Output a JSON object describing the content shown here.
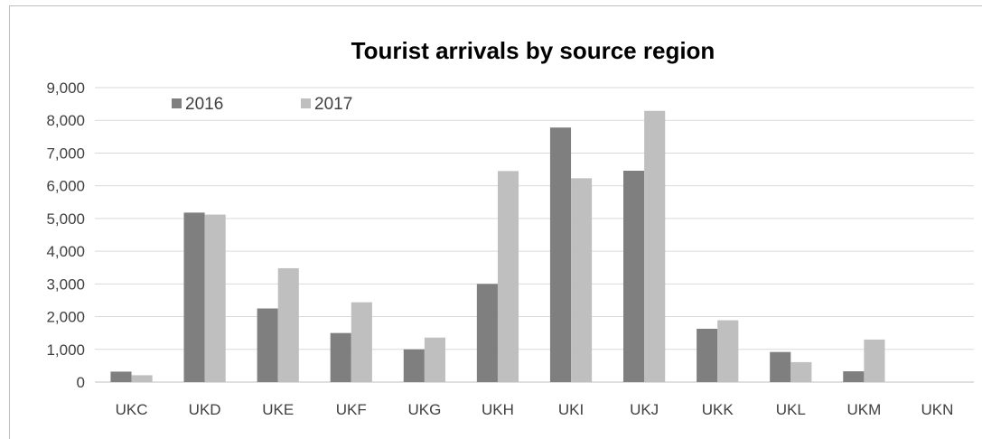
{
  "chart_data": {
    "type": "bar",
    "title": "Tourist arrivals by source region",
    "xlabel": "",
    "ylabel": "",
    "categories": [
      "UKC",
      "UKD",
      "UKE",
      "UKF",
      "UKG",
      "UKH",
      "UKI",
      "UKJ",
      "UKK",
      "UKL",
      "UKM",
      "UKN"
    ],
    "series": [
      {
        "name": "2016",
        "color": "#7f7f7f",
        "values": [
          320,
          5180,
          2250,
          1500,
          1000,
          3000,
          7780,
          6460,
          1630,
          920,
          330,
          0
        ]
      },
      {
        "name": "2017",
        "color": "#bfbfbf",
        "values": [
          210,
          5120,
          3480,
          2440,
          1360,
          6450,
          6230,
          8290,
          1890,
          610,
          1300,
          0
        ]
      }
    ],
    "ylim": [
      0,
      9000
    ],
    "yticks": [
      "0",
      "1,000",
      "2,000",
      "3,000",
      "4,000",
      "5,000",
      "6,000",
      "7,000",
      "8,000",
      "9,000"
    ],
    "grid": true,
    "legend_position": "top-left"
  }
}
